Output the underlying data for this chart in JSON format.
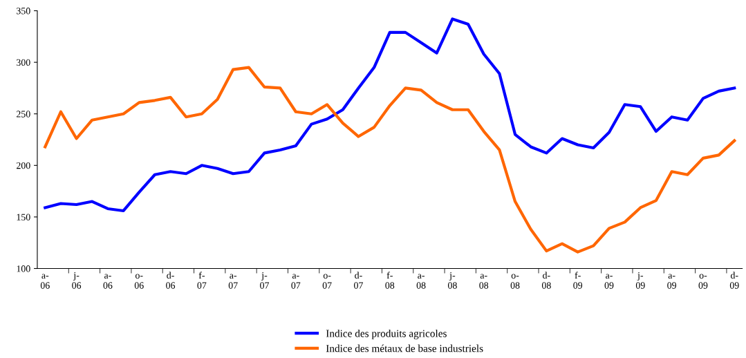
{
  "chart_data": {
    "type": "line",
    "categories": [
      "a-\n06",
      null,
      "j-\n06",
      null,
      "a-\n06",
      null,
      "o-\n06",
      null,
      "d-\n06",
      null,
      "f-\n07",
      null,
      "a-\n07",
      null,
      "j-\n07",
      null,
      "a-\n07",
      null,
      "o-\n07",
      null,
      "d-\n07",
      null,
      "f-\n08",
      null,
      "a-\n08",
      null,
      "j-\n08",
      null,
      "a-\n08",
      null,
      "o-\n08",
      null,
      "d-\n08",
      null,
      "f-\n09",
      null,
      "a-\n09",
      null,
      "j-\n09",
      null,
      "a-\n09",
      null,
      "o-\n09",
      null,
      "d-\n09"
    ],
    "series": [
      {
        "name": "Indice des produits agricoles",
        "color": "#0000ff",
        "values": [
          159,
          163,
          162,
          165,
          158,
          156,
          174,
          191,
          194,
          192,
          200,
          197,
          192,
          194,
          212,
          215,
          219,
          240,
          245,
          254,
          275,
          295,
          329,
          329,
          319,
          309,
          342,
          337,
          308,
          289,
          230,
          218,
          212,
          226,
          220,
          217,
          232,
          259,
          257,
          233,
          247,
          244,
          265,
          272,
          275
        ]
      },
      {
        "name": "Indice des métaux de base industriels",
        "color": "#ff6600",
        "values": [
          218,
          252,
          226,
          244,
          247,
          250,
          261,
          263,
          266,
          247,
          250,
          264,
          293,
          295,
          276,
          275,
          252,
          250,
          259,
          241,
          228,
          237,
          258,
          275,
          273,
          261,
          254,
          254,
          233,
          215,
          165,
          138,
          117,
          124,
          116,
          122,
          139,
          145,
          159,
          166,
          194,
          191,
          207,
          210,
          224
        ]
      }
    ],
    "ylim": [
      100,
      350
    ],
    "yticks": [
      100,
      150,
      200,
      250,
      300,
      350
    ],
    "grid": false,
    "legend": "bottom",
    "marker": "none",
    "line_style": "solid"
  }
}
